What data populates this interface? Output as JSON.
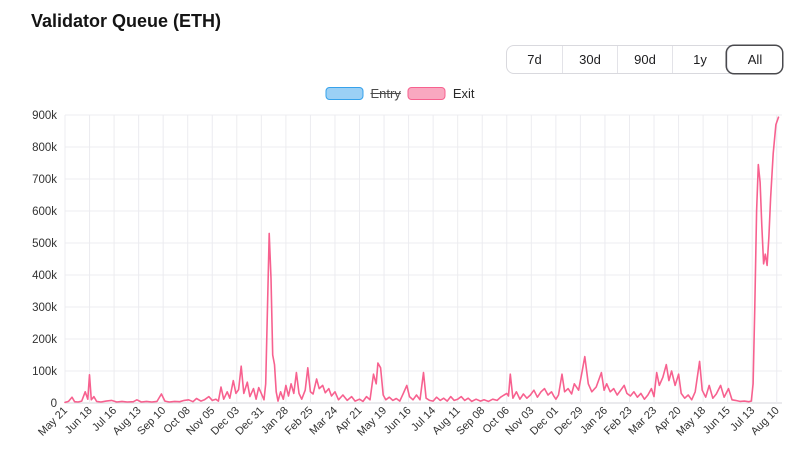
{
  "header": {
    "title": "Validator Queue (ETH)"
  },
  "range_selector": {
    "options": [
      "7d",
      "30d",
      "90d",
      "1y",
      "All"
    ],
    "active": "All"
  },
  "legend": [
    {
      "label": "Entry",
      "border_color": "#36A2EB",
      "fill_color": "#9BD0F5",
      "disabled": true
    },
    {
      "label": "Exit",
      "border_color": "#F7618F",
      "fill_color": "#F9A8C0",
      "disabled": false
    }
  ],
  "chart_data": {
    "type": "line",
    "title": "Validator Queue (ETH)",
    "grid": true,
    "legend_position": "top",
    "x_tick_labels": [
      "May 21",
      "Jun 18",
      "Jul 16",
      "Aug 13",
      "Sep 10",
      "Oct 08",
      "Nov 05",
      "Dec 03",
      "Dec 31",
      "Jan 28",
      "Feb 25",
      "Mar 24",
      "Apr 21",
      "May 19",
      "Jun 16",
      "Jul 14",
      "Aug 11",
      "Sep 08",
      "Oct 06",
      "Nov 03",
      "Dec 01",
      "Dec 29",
      "Jan 26",
      "Feb 23",
      "Mar 23",
      "Apr 20",
      "May 18",
      "Jun 15",
      "Jul 13",
      "Aug 10"
    ],
    "x_tick_interval_days": 28,
    "x_domain_days": [
      0,
      818
    ],
    "ylim_thousands": [
      0,
      900
    ],
    "y_tick_step_thousands": 100,
    "y_tick_labels": [
      "0",
      "100k",
      "200k",
      "300k",
      "400k",
      "500k",
      "600k",
      "700k",
      "800k",
      "900k"
    ],
    "series": [
      {
        "name": "Entry",
        "hidden": true,
        "points_day_thousands": []
      },
      {
        "name": "Exit",
        "hidden": false,
        "points_day_thousands": [
          [
            0,
            2
          ],
          [
            4,
            5
          ],
          [
            8,
            18
          ],
          [
            11,
            4
          ],
          [
            15,
            3
          ],
          [
            19,
            6
          ],
          [
            23,
            35
          ],
          [
            26,
            12
          ],
          [
            28,
            88
          ],
          [
            30,
            10
          ],
          [
            33,
            20
          ],
          [
            36,
            5
          ],
          [
            41,
            3
          ],
          [
            47,
            6
          ],
          [
            53,
            8
          ],
          [
            59,
            3
          ],
          [
            65,
            5
          ],
          [
            71,
            3
          ],
          [
            78,
            4
          ],
          [
            82,
            10
          ],
          [
            87,
            3
          ],
          [
            93,
            5
          ],
          [
            99,
            3
          ],
          [
            105,
            5
          ],
          [
            110,
            28
          ],
          [
            114,
            6
          ],
          [
            119,
            3
          ],
          [
            125,
            5
          ],
          [
            131,
            4
          ],
          [
            136,
            8
          ],
          [
            141,
            10
          ],
          [
            146,
            4
          ],
          [
            150,
            14
          ],
          [
            155,
            6
          ],
          [
            159,
            10
          ],
          [
            164,
            20
          ],
          [
            168,
            8
          ],
          [
            172,
            12
          ],
          [
            175,
            6
          ],
          [
            178,
            50
          ],
          [
            181,
            12
          ],
          [
            185,
            35
          ],
          [
            188,
            15
          ],
          [
            192,
            70
          ],
          [
            195,
            30
          ],
          [
            198,
            42
          ],
          [
            201,
            115
          ],
          [
            204,
            30
          ],
          [
            208,
            65
          ],
          [
            211,
            20
          ],
          [
            215,
            45
          ],
          [
            218,
            12
          ],
          [
            221,
            48
          ],
          [
            224,
            30
          ],
          [
            227,
            10
          ],
          [
            229,
            60
          ],
          [
            231,
            300
          ],
          [
            233,
            530
          ],
          [
            235,
            390
          ],
          [
            237,
            150
          ],
          [
            239,
            120
          ],
          [
            241,
            35
          ],
          [
            243,
            6
          ],
          [
            246,
            35
          ],
          [
            249,
            12
          ],
          [
            252,
            55
          ],
          [
            255,
            22
          ],
          [
            258,
            60
          ],
          [
            261,
            30
          ],
          [
            264,
            95
          ],
          [
            267,
            30
          ],
          [
            270,
            12
          ],
          [
            274,
            40
          ],
          [
            277,
            110
          ],
          [
            280,
            35
          ],
          [
            283,
            28
          ],
          [
            287,
            75
          ],
          [
            290,
            45
          ],
          [
            294,
            55
          ],
          [
            297,
            32
          ],
          [
            301,
            45
          ],
          [
            304,
            22
          ],
          [
            308,
            35
          ],
          [
            312,
            10
          ],
          [
            317,
            25
          ],
          [
            322,
            8
          ],
          [
            327,
            20
          ],
          [
            331,
            6
          ],
          [
            336,
            12
          ],
          [
            340,
            5
          ],
          [
            344,
            20
          ],
          [
            348,
            10
          ],
          [
            352,
            90
          ],
          [
            355,
            60
          ],
          [
            357,
            125
          ],
          [
            360,
            110
          ],
          [
            363,
            25
          ],
          [
            366,
            10
          ],
          [
            370,
            18
          ],
          [
            374,
            8
          ],
          [
            378,
            14
          ],
          [
            382,
            6
          ],
          [
            386,
            30
          ],
          [
            390,
            55
          ],
          [
            393,
            20
          ],
          [
            397,
            10
          ],
          [
            401,
            25
          ],
          [
            405,
            10
          ],
          [
            409,
            95
          ],
          [
            412,
            15
          ],
          [
            416,
            8
          ],
          [
            420,
            6
          ],
          [
            424,
            18
          ],
          [
            428,
            8
          ],
          [
            432,
            15
          ],
          [
            436,
            6
          ],
          [
            440,
            20
          ],
          [
            444,
            8
          ],
          [
            448,
            12
          ],
          [
            452,
            20
          ],
          [
            456,
            8
          ],
          [
            460,
            15
          ],
          [
            464,
            5
          ],
          [
            469,
            12
          ],
          [
            474,
            6
          ],
          [
            478,
            10
          ],
          [
            483,
            5
          ],
          [
            488,
            12
          ],
          [
            493,
            8
          ],
          [
            497,
            18
          ],
          [
            501,
            25
          ],
          [
            504,
            30
          ],
          [
            506,
            22
          ],
          [
            508,
            90
          ],
          [
            511,
            15
          ],
          [
            515,
            35
          ],
          [
            519,
            12
          ],
          [
            523,
            28
          ],
          [
            527,
            15
          ],
          [
            531,
            25
          ],
          [
            535,
            40
          ],
          [
            539,
            18
          ],
          [
            543,
            35
          ],
          [
            547,
            45
          ],
          [
            551,
            25
          ],
          [
            555,
            35
          ],
          [
            558,
            20
          ],
          [
            560,
            12
          ],
          [
            563,
            25
          ],
          [
            567,
            90
          ],
          [
            570,
            35
          ],
          [
            574,
            45
          ],
          [
            578,
            28
          ],
          [
            581,
            60
          ],
          [
            586,
            40
          ],
          [
            590,
            100
          ],
          [
            593,
            145
          ],
          [
            597,
            60
          ],
          [
            601,
            35
          ],
          [
            606,
            50
          ],
          [
            612,
            95
          ],
          [
            615,
            40
          ],
          [
            618,
            60
          ],
          [
            622,
            35
          ],
          [
            626,
            45
          ],
          [
            630,
            25
          ],
          [
            634,
            40
          ],
          [
            638,
            55
          ],
          [
            641,
            30
          ],
          [
            645,
            22
          ],
          [
            649,
            35
          ],
          [
            653,
            18
          ],
          [
            657,
            30
          ],
          [
            661,
            12
          ],
          [
            665,
            25
          ],
          [
            669,
            45
          ],
          [
            672,
            20
          ],
          [
            675,
            95
          ],
          [
            678,
            55
          ],
          [
            682,
            80
          ],
          [
            686,
            120
          ],
          [
            689,
            70
          ],
          [
            692,
            100
          ],
          [
            696,
            55
          ],
          [
            700,
            90
          ],
          [
            703,
            30
          ],
          [
            707,
            15
          ],
          [
            711,
            25
          ],
          [
            715,
            10
          ],
          [
            719,
            35
          ],
          [
            724,
            130
          ],
          [
            727,
            40
          ],
          [
            731,
            18
          ],
          [
            735,
            55
          ],
          [
            739,
            15
          ],
          [
            743,
            28
          ],
          [
            748,
            55
          ],
          [
            752,
            18
          ],
          [
            757,
            45
          ],
          [
            761,
            10
          ],
          [
            765,
            8
          ],
          [
            770,
            5
          ],
          [
            775,
            6
          ],
          [
            780,
            4
          ],
          [
            783,
            6
          ],
          [
            785,
            60
          ],
          [
            787,
            300
          ],
          [
            789,
            600
          ],
          [
            791,
            745
          ],
          [
            793,
            690
          ],
          [
            795,
            555
          ],
          [
            797,
            435
          ],
          [
            799,
            465
          ],
          [
            801,
            430
          ],
          [
            803,
            520
          ],
          [
            805,
            640
          ],
          [
            808,
            780
          ],
          [
            811,
            870
          ],
          [
            814,
            893
          ]
        ]
      }
    ]
  },
  "colors": {
    "line_exit": "#F7618F",
    "entry_blue": "#36A2EB",
    "grid": "#ececf0",
    "zero_line": "#d6d6db",
    "axis_text": "#333333",
    "background": "#ffffff"
  }
}
